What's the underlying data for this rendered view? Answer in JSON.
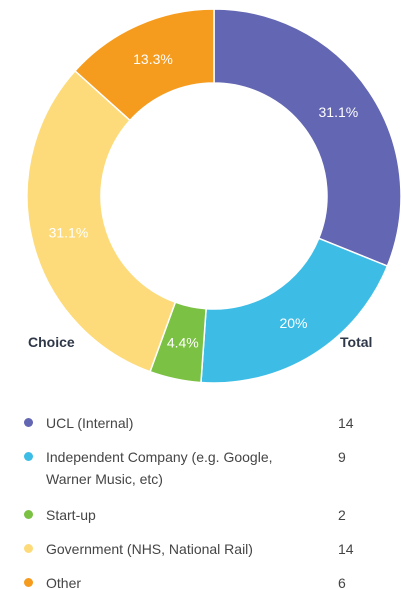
{
  "chart_data": {
    "type": "pie",
    "style": "donut",
    "title": "",
    "column_headers": {
      "choice": "Choice",
      "total": "Total"
    },
    "slices": [
      {
        "label": "UCL (Internal)",
        "value": 14,
        "percent_label": "31.1%",
        "color": "#6366b2"
      },
      {
        "label": "Independent Company (e.g. Google, Warner Music, etc)",
        "value": 9,
        "percent_label": "20%",
        "color": "#3dbde6"
      },
      {
        "label": "Start-up",
        "value": 2,
        "percent_label": "4.4%",
        "color": "#7bc143"
      },
      {
        "label": "Government (NHS, National Rail)",
        "value": 14,
        "percent_label": "31.1%",
        "color": "#fddb7a"
      },
      {
        "label": "Other",
        "value": 6,
        "percent_label": "13.3%",
        "color": "#f59c1f"
      }
    ]
  }
}
